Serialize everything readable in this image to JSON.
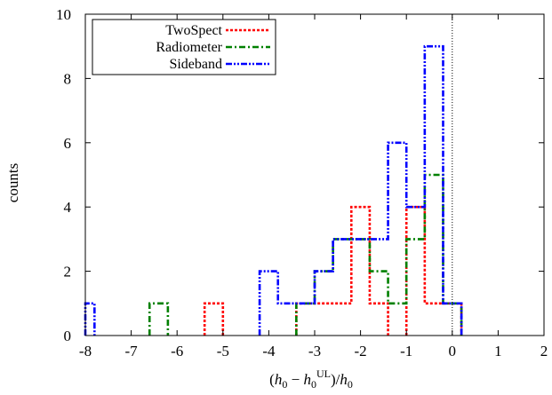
{
  "chart_data": {
    "type": "histogram",
    "xlim": [
      -8,
      2
    ],
    "ylim": [
      0,
      10
    ],
    "xticks": [
      -8,
      -7,
      -6,
      -5,
      -4,
      -3,
      -2,
      -1,
      0,
      1,
      2
    ],
    "yticks": [
      0,
      2,
      4,
      6,
      8,
      10
    ],
    "ylabel": "counts",
    "xlabel": "(h0 − h0UL)/h0",
    "vline_x": 0,
    "legend_position": "top-left",
    "series": [
      {
        "name": "TwoSpect",
        "color": "#ff0000",
        "dash": "dotted",
        "bins": [
          {
            "x0": -5.4,
            "x1": -5.0,
            "count": 1
          },
          {
            "x0": -3.4,
            "x1": -2.2,
            "count": 1
          },
          {
            "x0": -2.2,
            "x1": -1.8,
            "count": 4
          },
          {
            "x0": -1.8,
            "x1": -1.4,
            "count": 1
          },
          {
            "x0": -1.0,
            "x1": -0.6,
            "count": 4
          },
          {
            "x0": -0.6,
            "x1": -0.2,
            "count": 1
          },
          {
            "x0": -0.2,
            "x1": 0.2,
            "count": 1
          }
        ]
      },
      {
        "name": "Radiometer",
        "color": "#008000",
        "dash": "dash-dot",
        "bins": [
          {
            "x0": -6.6,
            "x1": -6.2,
            "count": 1
          },
          {
            "x0": -3.4,
            "x1": -3.0,
            "count": 1
          },
          {
            "x0": -3.0,
            "x1": -2.6,
            "count": 2
          },
          {
            "x0": -2.6,
            "x1": -1.8,
            "count": 3
          },
          {
            "x0": -1.8,
            "x1": -1.4,
            "count": 2
          },
          {
            "x0": -1.4,
            "x1": -1.0,
            "count": 1
          },
          {
            "x0": -1.0,
            "x1": -0.6,
            "count": 3
          },
          {
            "x0": -0.6,
            "x1": -0.2,
            "count": 5
          },
          {
            "x0": -0.2,
            "x1": 0.2,
            "count": 1
          }
        ]
      },
      {
        "name": "Sideband",
        "color": "#0000ff",
        "dash": "dash-dot-dot",
        "bins": [
          {
            "x0": -8.0,
            "x1": -7.8,
            "count": 1
          },
          {
            "x0": -4.2,
            "x1": -3.8,
            "count": 2
          },
          {
            "x0": -3.8,
            "x1": -3.0,
            "count": 1
          },
          {
            "x0": -3.0,
            "x1": -2.6,
            "count": 2
          },
          {
            "x0": -2.6,
            "x1": -1.4,
            "count": 3
          },
          {
            "x0": -1.4,
            "x1": -1.0,
            "count": 6
          },
          {
            "x0": -1.0,
            "x1": -0.6,
            "count": 4
          },
          {
            "x0": -0.6,
            "x1": -0.2,
            "count": 9
          },
          {
            "x0": -0.2,
            "x1": 0.2,
            "count": 1
          }
        ]
      }
    ]
  }
}
